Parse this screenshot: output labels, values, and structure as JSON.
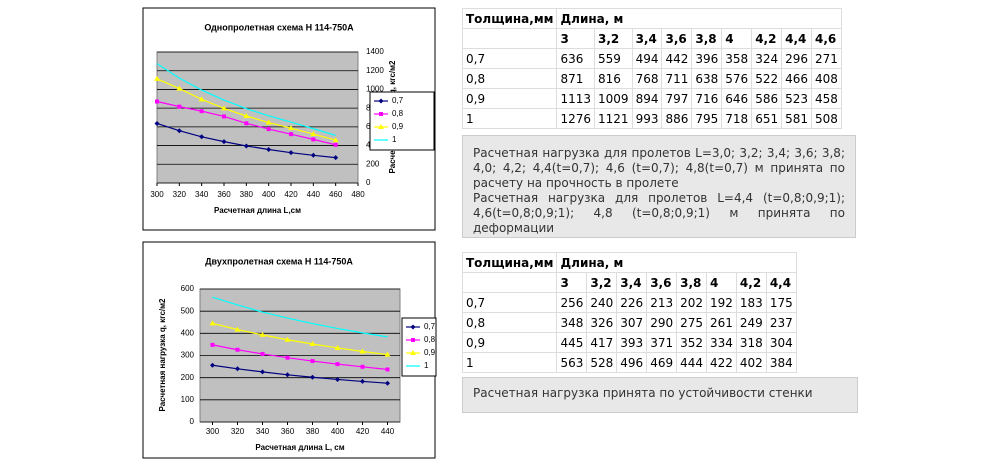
{
  "chart_data": [
    {
      "type": "line",
      "title": "Однопролетная схема Н 114-750А",
      "xlabel": "Расчетная длина L,см",
      "ylabel": "Расчетная нагрузка q, кгс/м2",
      "x": [
        300,
        320,
        340,
        360,
        380,
        400,
        420,
        440,
        460
      ],
      "series": [
        {
          "name": "0,7",
          "color": "#000080",
          "marker": "diamond",
          "values": [
            636,
            559,
            494,
            442,
            396,
            358,
            324,
            296,
            271
          ]
        },
        {
          "name": "0,8",
          "color": "#ff00ff",
          "marker": "square",
          "values": [
            871,
            816,
            768,
            711,
            638,
            576,
            522,
            466,
            408
          ]
        },
        {
          "name": "0,9",
          "color": "#ffff00",
          "marker": "triangle",
          "values": [
            1113,
            1009,
            894,
            797,
            716,
            646,
            586,
            523,
            458
          ]
        },
        {
          "name": "1",
          "color": "#00ffff",
          "marker": "none",
          "values": [
            1276,
            1121,
            993,
            886,
            795,
            718,
            651,
            581,
            508
          ]
        }
      ],
      "xlim": [
        300,
        480
      ],
      "xticks": [
        300,
        320,
        340,
        360,
        380,
        400,
        420,
        440,
        460,
        480
      ],
      "ylim": [
        0,
        1400
      ],
      "yticks": [
        0,
        200,
        400,
        600,
        800,
        1000,
        1200,
        1400
      ],
      "y_axis_side": "right",
      "grid": true,
      "legend": "right"
    },
    {
      "type": "line",
      "title": "Двухпролетная схема Н 114-750А",
      "xlabel": "Расчетная длина L, см",
      "ylabel": "Расчетная нагрузка q, кгс/м2",
      "x": [
        300,
        320,
        340,
        360,
        380,
        400,
        420,
        440
      ],
      "series": [
        {
          "name": "0,7",
          "color": "#000080",
          "marker": "diamond",
          "values": [
            256,
            240,
            226,
            213,
            202,
            192,
            183,
            175
          ]
        },
        {
          "name": "0,8",
          "color": "#ff00ff",
          "marker": "square",
          "values": [
            348,
            326,
            307,
            290,
            275,
            261,
            249,
            237
          ]
        },
        {
          "name": "0,9",
          "color": "#ffff00",
          "marker": "triangle",
          "values": [
            445,
            417,
            393,
            371,
            352,
            334,
            318,
            304
          ]
        },
        {
          "name": "1",
          "color": "#00ffff",
          "marker": "none",
          "values": [
            563,
            528,
            496,
            469,
            444,
            422,
            402,
            384
          ]
        }
      ],
      "xlim": [
        290,
        450
      ],
      "xticks": [
        300,
        320,
        340,
        360,
        380,
        400,
        420,
        440
      ],
      "ylim": [
        0,
        600
      ],
      "yticks": [
        0,
        100,
        200,
        300,
        400,
        500,
        600
      ],
      "y_axis_side": "left",
      "grid": true,
      "legend": "right"
    }
  ],
  "tables": [
    {
      "header": [
        "Толщина,мм",
        "Длина, м"
      ],
      "lengths": [
        "3",
        "3,2",
        "3,4",
        "3,6",
        "3,8",
        "4",
        "4,2",
        "4,4",
        "4,6"
      ],
      "rows": [
        [
          "0,7",
          636,
          559,
          494,
          442,
          396,
          358,
          324,
          296,
          271
        ],
        [
          "0,8",
          871,
          816,
          768,
          711,
          638,
          576,
          522,
          466,
          408
        ],
        [
          "0,9",
          1113,
          1009,
          894,
          797,
          716,
          646,
          586,
          523,
          458
        ],
        [
          "1",
          1276,
          1121,
          993,
          886,
          795,
          718,
          651,
          581,
          508
        ]
      ]
    },
    {
      "header": [
        "Толщина,мм",
        "Длина, м"
      ],
      "lengths": [
        "3",
        "3,2",
        "3,4",
        "3,6",
        "3,8",
        "4",
        "4,2",
        "4,4"
      ],
      "rows": [
        [
          "0,7",
          256,
          240,
          226,
          213,
          202,
          192,
          183,
          175
        ],
        [
          "0,8",
          348,
          326,
          307,
          290,
          275,
          261,
          249,
          237
        ],
        [
          "0,9",
          445,
          417,
          393,
          371,
          352,
          334,
          318,
          304
        ],
        [
          "1",
          563,
          528,
          496,
          469,
          444,
          422,
          402,
          384
        ]
      ]
    }
  ],
  "notes": [
    [
      "Расчетная нагрузка для пролетов L=3,0; 3,2; 3,4; 3,6; 3,8; 4,0; 4,2; 4,4(t=0,7); 4,6 (t=0,7); 4,8(t=0,7) м принята по расчету на прочность в пролете",
      "Расчетная нагрузка для пролетов L=4,4 (t=0,8;0,9;1); 4,6(t=0,8;0,9;1); 4,8 (t=0,8;0,9;1) м принята по деформации"
    ],
    [
      "Расчетная нагрузка принята по устойчивости стенки"
    ]
  ]
}
